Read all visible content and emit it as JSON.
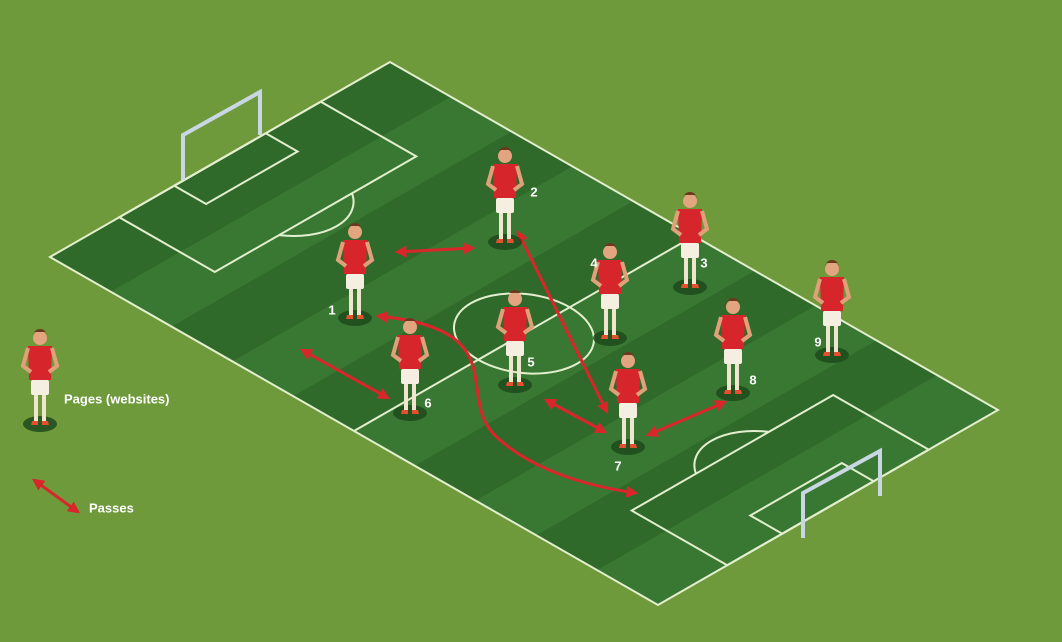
{
  "players": [
    {
      "label": "1"
    },
    {
      "label": "2"
    },
    {
      "label": "3"
    },
    {
      "label": "4"
    },
    {
      "label": "5"
    },
    {
      "label": "6"
    },
    {
      "label": "7"
    },
    {
      "label": "8"
    },
    {
      "label": "9"
    }
  ],
  "legend": {
    "player": "Pages (websites)",
    "pass": "Passes"
  }
}
